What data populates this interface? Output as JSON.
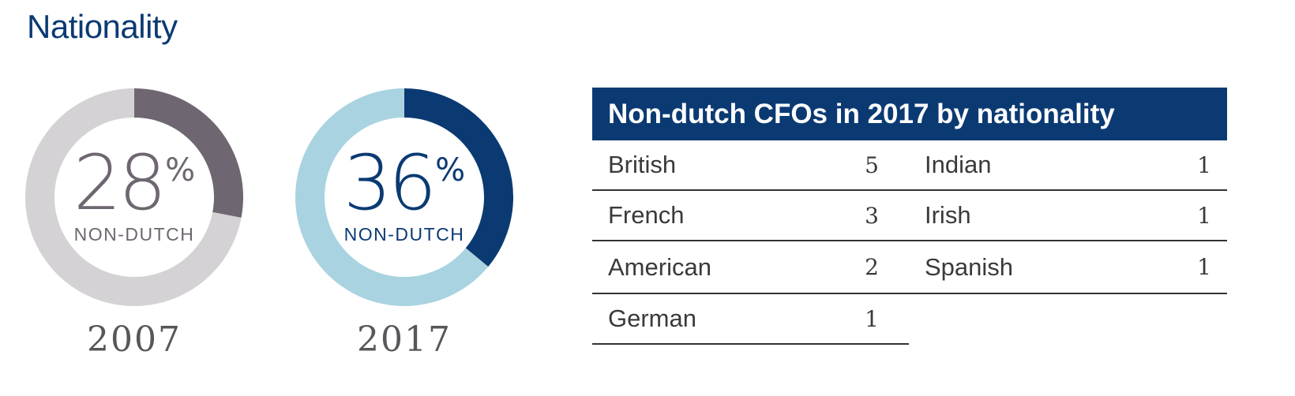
{
  "page_title": "Nationality",
  "chart_data": [
    {
      "type": "pie",
      "style": "donut",
      "year": "2007",
      "value_percent": 28,
      "percent_text": "28",
      "percent_sign": "%",
      "label": "NON-DUTCH",
      "colors": {
        "highlight": "#6e6670",
        "remainder": "#d4d2d4",
        "text": "#6e6670"
      }
    },
    {
      "type": "pie",
      "style": "donut",
      "year": "2017",
      "value_percent": 36,
      "percent_text": "36",
      "percent_sign": "%",
      "label": "NON-DUTCH",
      "colors": {
        "highlight": "#0b3a73",
        "remainder": "#a9d3e0",
        "text": "#0b3a73"
      }
    },
    {
      "type": "table",
      "title": "Non-dutch CFOs in 2017 by nationality",
      "columns": [
        [
          {
            "nationality": "British",
            "count": "5"
          },
          {
            "nationality": "French",
            "count": "3"
          },
          {
            "nationality": "American",
            "count": "2"
          },
          {
            "nationality": "German",
            "count": "1"
          }
        ],
        [
          {
            "nationality": "Indian",
            "count": "1"
          },
          {
            "nationality": "Irish",
            "count": "1"
          },
          {
            "nationality": "Spanish",
            "count": "1"
          }
        ]
      ],
      "colors": {
        "header_bg": "#0b3a73",
        "header_text": "#ffffff"
      }
    }
  ]
}
